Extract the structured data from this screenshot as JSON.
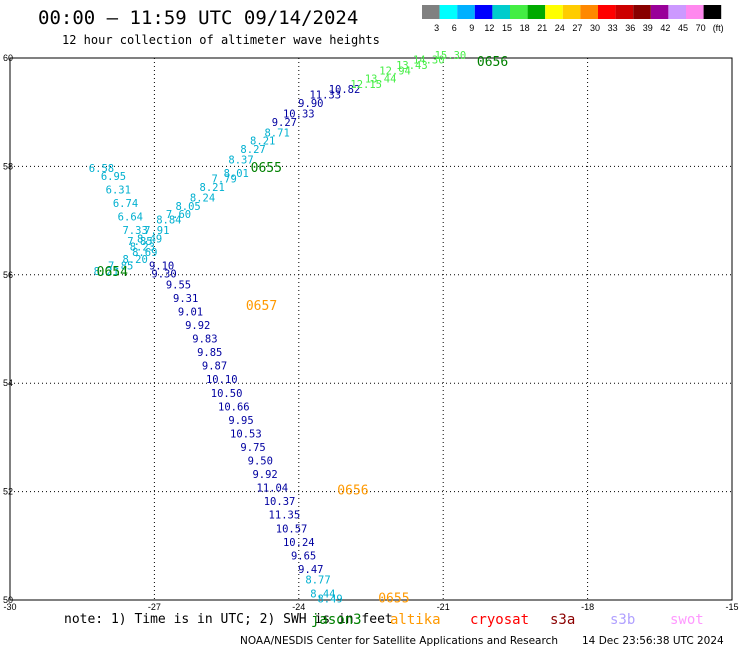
{
  "header": {
    "title": "00:00 — 11:59 UTC 09/14/2024",
    "subtitle": "12 hour collection of altimeter wave heights"
  },
  "legend": {
    "colors": [
      "#808080",
      "#00ffff",
      "#00b0ff",
      "#0000ff",
      "#00cccc",
      "#44ee44",
      "#00aa00",
      "#ffff00",
      "#ffcc00",
      "#ff8800",
      "#ff0000",
      "#cc0000",
      "#880000",
      "#990099",
      "#cc99ff",
      "#ff88ee",
      "#000000"
    ],
    "labels": [
      "3",
      "6",
      "9",
      "12",
      "15",
      "18",
      "21",
      "24",
      "27",
      "30",
      "33",
      "36",
      "39",
      "42",
      "45",
      "70",
      "(ft)"
    ]
  },
  "colors": {
    "cyan_track": "#00b0d0",
    "blue_track": "#0000a0",
    "green_track": "#44ee44",
    "jason3": "#008000",
    "altika": "#ff9900",
    "cryosat": "#ff0000",
    "s3a": "#8b0000",
    "s3b": "#b0a0ff",
    "swot": "#ff99ff"
  },
  "chart_data": {
    "type": "scatter",
    "xlim": [
      -30,
      -15
    ],
    "ylim": [
      50,
      60
    ],
    "x_ticks": [
      "-30",
      "-27",
      "-24",
      "-21",
      "-18",
      "-15"
    ],
    "y_ticks": [
      "50",
      "52",
      "54",
      "56",
      "58",
      "60"
    ],
    "grid": true,
    "series": [
      {
        "name": "jason3",
        "color": "#008000",
        "points": [
          {
            "lon": -28.1,
            "lat": 57.9,
            "label": "6.58",
            "c": "c"
          },
          {
            "lon": -27.85,
            "lat": 57.75,
            "label": "6.95",
            "c": "c"
          },
          {
            "lon": -27.75,
            "lat": 57.5,
            "label": "6.31",
            "c": "c"
          },
          {
            "lon": -27.6,
            "lat": 57.25,
            "label": "6.74",
            "c": "c"
          },
          {
            "lon": -27.5,
            "lat": 57.0,
            "label": "6.64",
            "c": "c"
          },
          {
            "lon": -27.4,
            "lat": 56.75,
            "label": "7.33",
            "c": "c"
          },
          {
            "lon": -27.3,
            "lat": 56.55,
            "label": "7.85",
            "c": "c"
          },
          {
            "lon": -27.25,
            "lat": 56.45,
            "label": "8.23",
            "c": "c"
          },
          {
            "lon": -27.2,
            "lat": 56.35,
            "label": "8.69",
            "c": "c"
          },
          {
            "lon": -27.4,
            "lat": 56.22,
            "label": "8.20",
            "c": "c"
          },
          {
            "lon": -27.7,
            "lat": 56.1,
            "label": "7.85",
            "c": "c"
          },
          {
            "lon": -28.0,
            "lat": 56.0,
            "label": "8.21",
            "c": "c"
          },
          {
            "lon": -27.1,
            "lat": 56.6,
            "label": "8.49",
            "c": "c"
          },
          {
            "lon": -26.95,
            "lat": 56.75,
            "label": "7.91",
            "c": "c"
          },
          {
            "lon": -26.7,
            "lat": 56.95,
            "label": "8.84",
            "c": "c"
          },
          {
            "lon": -26.5,
            "lat": 57.05,
            "label": "7.60",
            "c": "c"
          },
          {
            "lon": -26.3,
            "lat": 57.2,
            "label": "8.05",
            "c": "c"
          },
          {
            "lon": -26.0,
            "lat": 57.35,
            "label": "8.24",
            "c": "c"
          },
          {
            "lon": -25.8,
            "lat": 57.55,
            "label": "8.21",
            "c": "c"
          },
          {
            "lon": -25.55,
            "lat": 57.7,
            "label": "7.79",
            "c": "c"
          },
          {
            "lon": -25.3,
            "lat": 57.8,
            "label": "8.01",
            "c": "c"
          },
          {
            "lon": -25.2,
            "lat": 58.05,
            "label": "8.37",
            "c": "c"
          },
          {
            "lon": -24.95,
            "lat": 58.25,
            "label": "8.27",
            "c": "c"
          },
          {
            "lon": -24.75,
            "lat": 58.4,
            "label": "8.21",
            "c": "c"
          },
          {
            "lon": -24.45,
            "lat": 58.55,
            "label": "8.71",
            "c": "c"
          },
          {
            "lon": -24.3,
            "lat": 58.75,
            "label": "9.27",
            "c": "b"
          },
          {
            "lon": -24.0,
            "lat": 58.9,
            "label": "10.33",
            "c": "b"
          },
          {
            "lon": -23.75,
            "lat": 59.1,
            "label": "9.90",
            "c": "b"
          },
          {
            "lon": -23.45,
            "lat": 59.25,
            "label": "11.33",
            "c": "b"
          },
          {
            "lon": -23.05,
            "lat": 59.35,
            "label": "10.82",
            "c": "b"
          },
          {
            "lon": -22.6,
            "lat": 59.45,
            "label": "12.15",
            "c": "g"
          },
          {
            "lon": -22.3,
            "lat": 59.55,
            "label": "13.44",
            "c": "g"
          },
          {
            "lon": -22.0,
            "lat": 59.7,
            "label": "12.94",
            "c": "g"
          },
          {
            "lon": -21.65,
            "lat": 59.8,
            "label": "13.43",
            "c": "g"
          },
          {
            "lon": -21.3,
            "lat": 59.9,
            "label": "14.30",
            "c": "g"
          },
          {
            "lon": -20.85,
            "lat": 59.98,
            "label": "15.30",
            "c": "g"
          },
          {
            "lon": -26.85,
            "lat": 56.1,
            "label": "9.10",
            "c": "b"
          },
          {
            "lon": -26.8,
            "lat": 55.95,
            "label": "9.30",
            "c": "b"
          }
        ],
        "passes": [
          {
            "lon": -28.2,
            "lat": 55.98,
            "label": "0654"
          },
          {
            "lon": -25.0,
            "lat": 57.9,
            "label": "0655"
          },
          {
            "lon": -20.3,
            "lat": 59.85,
            "label": "0656"
          }
        ]
      },
      {
        "name": "altika",
        "color": "#ff9900",
        "points": [
          {
            "lon": -26.5,
            "lat": 55.75,
            "label": "9.55",
            "c": "b"
          },
          {
            "lon": -26.35,
            "lat": 55.5,
            "label": "9.31",
            "c": "b"
          },
          {
            "lon": -26.25,
            "lat": 55.25,
            "label": "9.01",
            "c": "b"
          },
          {
            "lon": -26.1,
            "lat": 55.0,
            "label": "9.92",
            "c": "b"
          },
          {
            "lon": -25.95,
            "lat": 54.75,
            "label": "9.83",
            "c": "b"
          },
          {
            "lon": -25.85,
            "lat": 54.5,
            "label": "9.85",
            "c": "b"
          },
          {
            "lon": -25.75,
            "lat": 54.25,
            "label": "9.87",
            "c": "b"
          },
          {
            "lon": -25.6,
            "lat": 54.0,
            "label": "10.10",
            "c": "b"
          },
          {
            "lon": -25.5,
            "lat": 53.75,
            "label": "10.50",
            "c": "b"
          },
          {
            "lon": -25.35,
            "lat": 53.5,
            "label": "10.66",
            "c": "b"
          },
          {
            "lon": -25.2,
            "lat": 53.25,
            "label": "9.95",
            "c": "b"
          },
          {
            "lon": -25.1,
            "lat": 53.0,
            "label": "10.53",
            "c": "b"
          },
          {
            "lon": -24.95,
            "lat": 52.75,
            "label": "9.75",
            "c": "b"
          },
          {
            "lon": -24.8,
            "lat": 52.5,
            "label": "9.50",
            "c": "b"
          },
          {
            "lon": -24.7,
            "lat": 52.25,
            "label": "9.92",
            "c": "b"
          },
          {
            "lon": -24.55,
            "lat": 52.0,
            "label": "11.04",
            "c": "b"
          },
          {
            "lon": -24.4,
            "lat": 51.75,
            "label": "10.37",
            "c": "b"
          },
          {
            "lon": -24.3,
            "lat": 51.5,
            "label": "11.35",
            "c": "b"
          },
          {
            "lon": -24.15,
            "lat": 51.25,
            "label": "10.57",
            "c": "b"
          },
          {
            "lon": -24.0,
            "lat": 51.0,
            "label": "10.24",
            "c": "b"
          },
          {
            "lon": -23.9,
            "lat": 50.75,
            "label": "9.65",
            "c": "b"
          },
          {
            "lon": -23.75,
            "lat": 50.5,
            "label": "9.47",
            "c": "b"
          },
          {
            "lon": -23.6,
            "lat": 50.3,
            "label": "8.77",
            "c": "c"
          },
          {
            "lon": -23.5,
            "lat": 50.05,
            "label": "8.44",
            "c": "c"
          },
          {
            "lon": -23.35,
            "lat": 49.95,
            "label": "8.49",
            "c": "c"
          }
        ],
        "passes": [
          {
            "lon": -25.1,
            "lat": 55.35,
            "label": "0657"
          },
          {
            "lon": -23.2,
            "lat": 51.95,
            "label": "0656"
          },
          {
            "lon": -22.35,
            "lat": 49.95,
            "label": "0655"
          }
        ]
      }
    ]
  },
  "footer": {
    "note": "note: 1) Time is in UTC; 2) SWH is in feet",
    "satellites": [
      {
        "name": "jason3",
        "color": "#008000",
        "x": 311
      },
      {
        "name": "altika",
        "color": "#ff9900",
        "x": 390
      },
      {
        "name": "cryosat",
        "color": "#ff0000",
        "x": 470
      },
      {
        "name": "s3a",
        "color": "#8b0000",
        "x": 550
      },
      {
        "name": "s3b",
        "color": "#b0a0ff",
        "x": 610
      },
      {
        "name": "swot",
        "color": "#ff99ff",
        "x": 670
      }
    ],
    "credit": "NOAA/NESDIS Center for Satellite Applications and Research",
    "timestamp": "14 Dec 23:56:38 UTC 2024"
  }
}
